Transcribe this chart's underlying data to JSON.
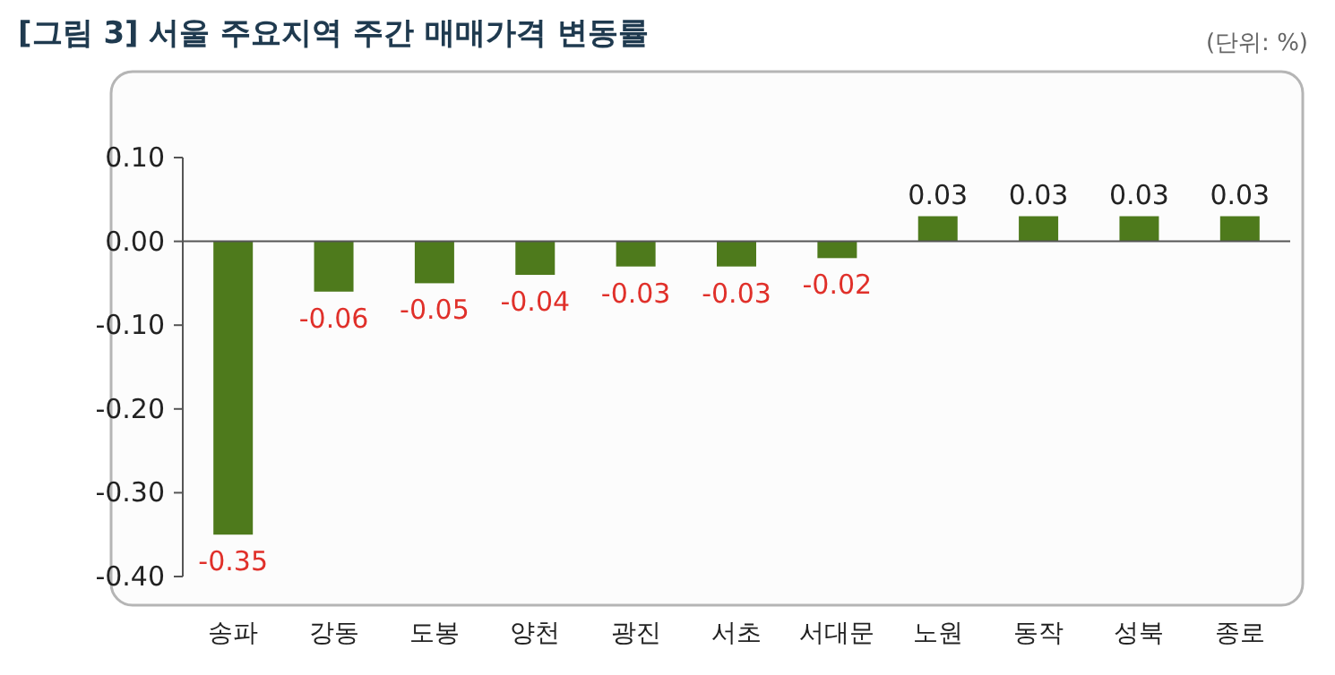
{
  "chart_data": {
    "type": "bar",
    "title": "[그림 3] 서울 주요지역 주간 매매가격 변동률",
    "annotations": [
      "(단위: %)"
    ],
    "categories": [
      "송파",
      "강동",
      "도봉",
      "양천",
      "광진",
      "서초",
      "서대문",
      "노원",
      "동작",
      "성북",
      "종로"
    ],
    "values": [
      -0.35,
      -0.06,
      -0.05,
      -0.04,
      -0.03,
      -0.03,
      -0.02,
      0.03,
      0.03,
      0.03,
      0.03
    ],
    "color": "#4e7a1c",
    "ylim": [
      -0.4,
      0.1
    ],
    "yticks": [
      {
        "value": 0.1,
        "label": "0.10"
      },
      {
        "value": 0,
        "label": "0.00"
      },
      {
        "value": -0.1,
        "label": "-0.10"
      },
      {
        "value": -0.2,
        "label": "-0.20"
      },
      {
        "value": -0.3,
        "label": "-0.30"
      },
      {
        "value": -0.4,
        "label": "-0.40"
      }
    ],
    "data_labels": true
  }
}
